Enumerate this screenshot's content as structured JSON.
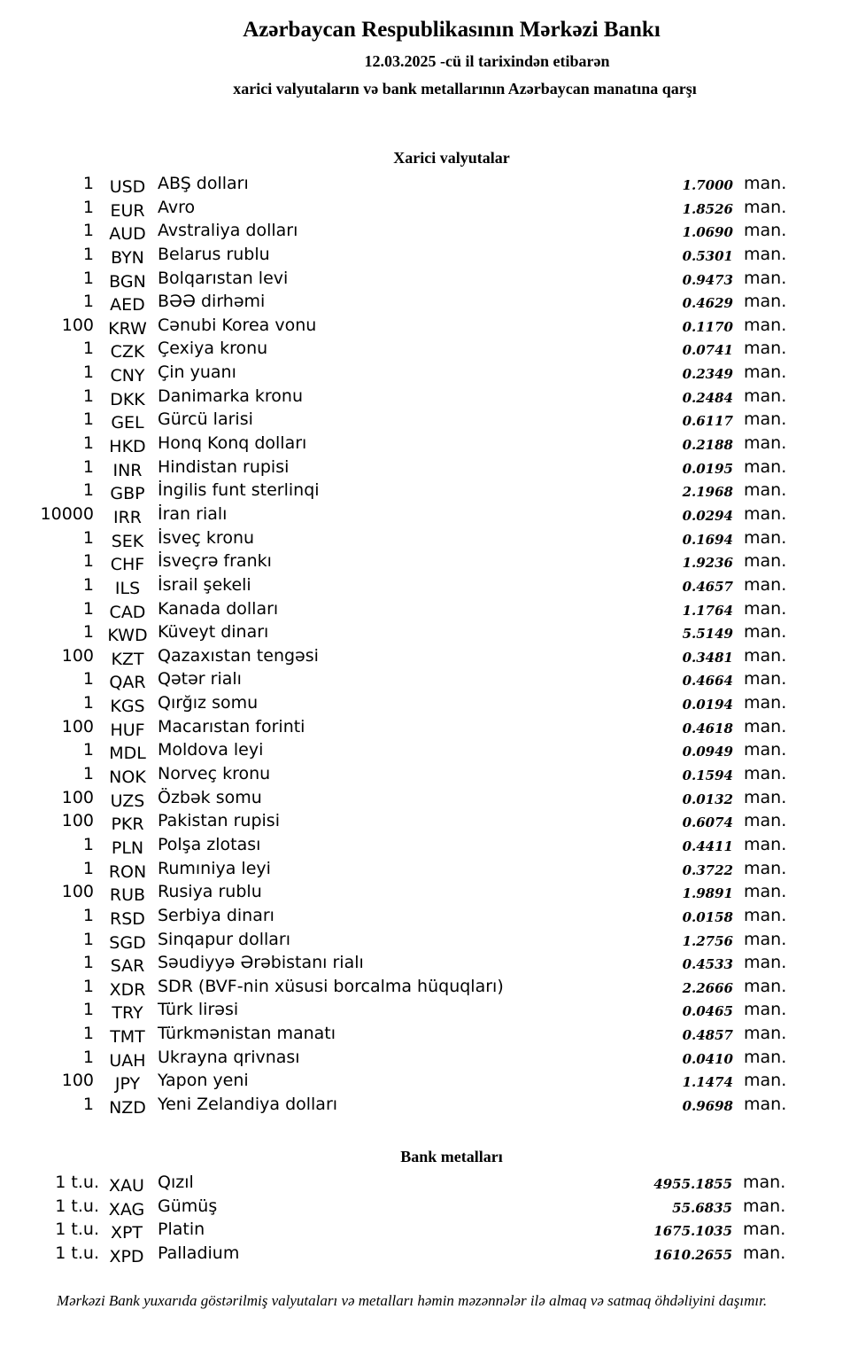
{
  "header": {
    "title": "Azərbaycan Respublikasının Mərkəzi Bankı",
    "date_line": "12.03.2025 -cü il tarixindən etibarən",
    "subtitle": "xarici valyutaların və bank metallarının Azərbaycan manatına qarşı"
  },
  "currencies": {
    "heading": "Xarici valyutalar",
    "unit": "man.",
    "rows": [
      {
        "amount": "1",
        "code": "USD",
        "name": "ABŞ dolları",
        "rate": "1.7000"
      },
      {
        "amount": "1",
        "code": "EUR",
        "name": "Avro",
        "rate": "1.8526"
      },
      {
        "amount": "1",
        "code": "AUD",
        "name": "Avstraliya dolları",
        "rate": "1.0690"
      },
      {
        "amount": "1",
        "code": "BYN",
        "name": "Belarus rublu",
        "rate": "0.5301"
      },
      {
        "amount": "1",
        "code": "BGN",
        "name": "Bolqarıstan levi",
        "rate": "0.9473"
      },
      {
        "amount": "1",
        "code": "AED",
        "name": "BƏƏ dirhəmi",
        "rate": "0.4629"
      },
      {
        "amount": "100",
        "code": "KRW",
        "name": "Cənubi Korea vonu",
        "rate": "0.1170"
      },
      {
        "amount": "1",
        "code": "CZK",
        "name": "Çexiya kronu",
        "rate": "0.0741"
      },
      {
        "amount": "1",
        "code": "CNY",
        "name": "Çin yuanı",
        "rate": "0.2349"
      },
      {
        "amount": "1",
        "code": "DKK",
        "name": "Danimarka kronu",
        "rate": "0.2484"
      },
      {
        "amount": "1",
        "code": "GEL",
        "name": "Gürcü larisi",
        "rate": "0.6117"
      },
      {
        "amount": "1",
        "code": "HKD",
        "name": "Honq Konq dolları",
        "rate": "0.2188"
      },
      {
        "amount": "1",
        "code": "INR",
        "name": "Hindistan rupisi",
        "rate": "0.0195"
      },
      {
        "amount": "1",
        "code": "GBP",
        "name": "İngilis funt sterlinqi",
        "rate": "2.1968"
      },
      {
        "amount": "10000",
        "code": "IRR",
        "name": "İran rialı",
        "rate": "0.0294"
      },
      {
        "amount": "1",
        "code": "SEK",
        "name": "İsveç kronu",
        "rate": "0.1694"
      },
      {
        "amount": "1",
        "code": "CHF",
        "name": "İsveçrə frankı",
        "rate": "1.9236"
      },
      {
        "amount": "1",
        "code": "ILS",
        "name": "İsrail şekeli",
        "rate": "0.4657"
      },
      {
        "amount": "1",
        "code": "CAD",
        "name": "Kanada dolları",
        "rate": "1.1764"
      },
      {
        "amount": "1",
        "code": "KWD",
        "name": "Küveyt dinarı",
        "rate": "5.5149"
      },
      {
        "amount": "100",
        "code": "KZT",
        "name": "Qazaxıstan tengəsi",
        "rate": "0.3481"
      },
      {
        "amount": "1",
        "code": "QAR",
        "name": "Qətər rialı",
        "rate": "0.4664"
      },
      {
        "amount": "1",
        "code": "KGS",
        "name": "Qırğız somu",
        "rate": "0.0194"
      },
      {
        "amount": "100",
        "code": "HUF",
        "name": "Macarıstan forinti",
        "rate": "0.4618"
      },
      {
        "amount": "1",
        "code": "MDL",
        "name": "Moldova leyi",
        "rate": "0.0949"
      },
      {
        "amount": "1",
        "code": "NOK",
        "name": "Norveç kronu",
        "rate": "0.1594"
      },
      {
        "amount": "100",
        "code": "UZS",
        "name": "Özbək somu",
        "rate": "0.0132"
      },
      {
        "amount": "100",
        "code": "PKR",
        "name": "Pakistan rupisi",
        "rate": "0.6074"
      },
      {
        "amount": "1",
        "code": "PLN",
        "name": "Polşa zlotası",
        "rate": "0.4411"
      },
      {
        "amount": "1",
        "code": "RON",
        "name": "Rumıniya leyi",
        "rate": "0.3722"
      },
      {
        "amount": "100",
        "code": "RUB",
        "name": "Rusiya rublu",
        "rate": "1.9891"
      },
      {
        "amount": "1",
        "code": "RSD",
        "name": "Serbiya dinarı",
        "rate": "0.0158"
      },
      {
        "amount": "1",
        "code": "SGD",
        "name": "Sinqapur dolları",
        "rate": "1.2756"
      },
      {
        "amount": "1",
        "code": "SAR",
        "name": "Səudiyyə Ərəbistanı rialı",
        "rate": "0.4533"
      },
      {
        "amount": "1",
        "code": "XDR",
        "name": "SDR (BVF-nin xüsusi borcalma hüquqları)",
        "rate": "2.2666"
      },
      {
        "amount": "1",
        "code": "TRY",
        "name": "Türk lirəsi",
        "rate": "0.0465"
      },
      {
        "amount": "1",
        "code": "TMT",
        "name": "Türkmənistan manatı",
        "rate": "0.4857"
      },
      {
        "amount": "1",
        "code": "UAH",
        "name": "Ukrayna qrivnası",
        "rate": "0.0410"
      },
      {
        "amount": "100",
        "code": "JPY",
        "name": "Yapon yeni",
        "rate": "1.1474"
      },
      {
        "amount": "1",
        "code": "NZD",
        "name": "Yeni Zelandiya dolları",
        "rate": "0.9698"
      }
    ]
  },
  "metals": {
    "heading": "Bank metalları",
    "unit": "man.",
    "rows": [
      {
        "amount": "1 t.u.",
        "code": "XAU",
        "name": "Qızıl",
        "rate": "4955.1855"
      },
      {
        "amount": "1 t.u.",
        "code": "XAG",
        "name": "Gümüş",
        "rate": "55.6835"
      },
      {
        "amount": "1 t.u.",
        "code": "XPT",
        "name": "Platin",
        "rate": "1675.1035"
      },
      {
        "amount": "1 t.u.",
        "code": "XPD",
        "name": "Palladium",
        "rate": "1610.2655"
      }
    ]
  },
  "footer": "Mərkəzi Bank yuxarıda göstərilmiş valyutaları və metalları həmin məzənnələr ilə almaq və satmaq öhdəliyini daşımır."
}
